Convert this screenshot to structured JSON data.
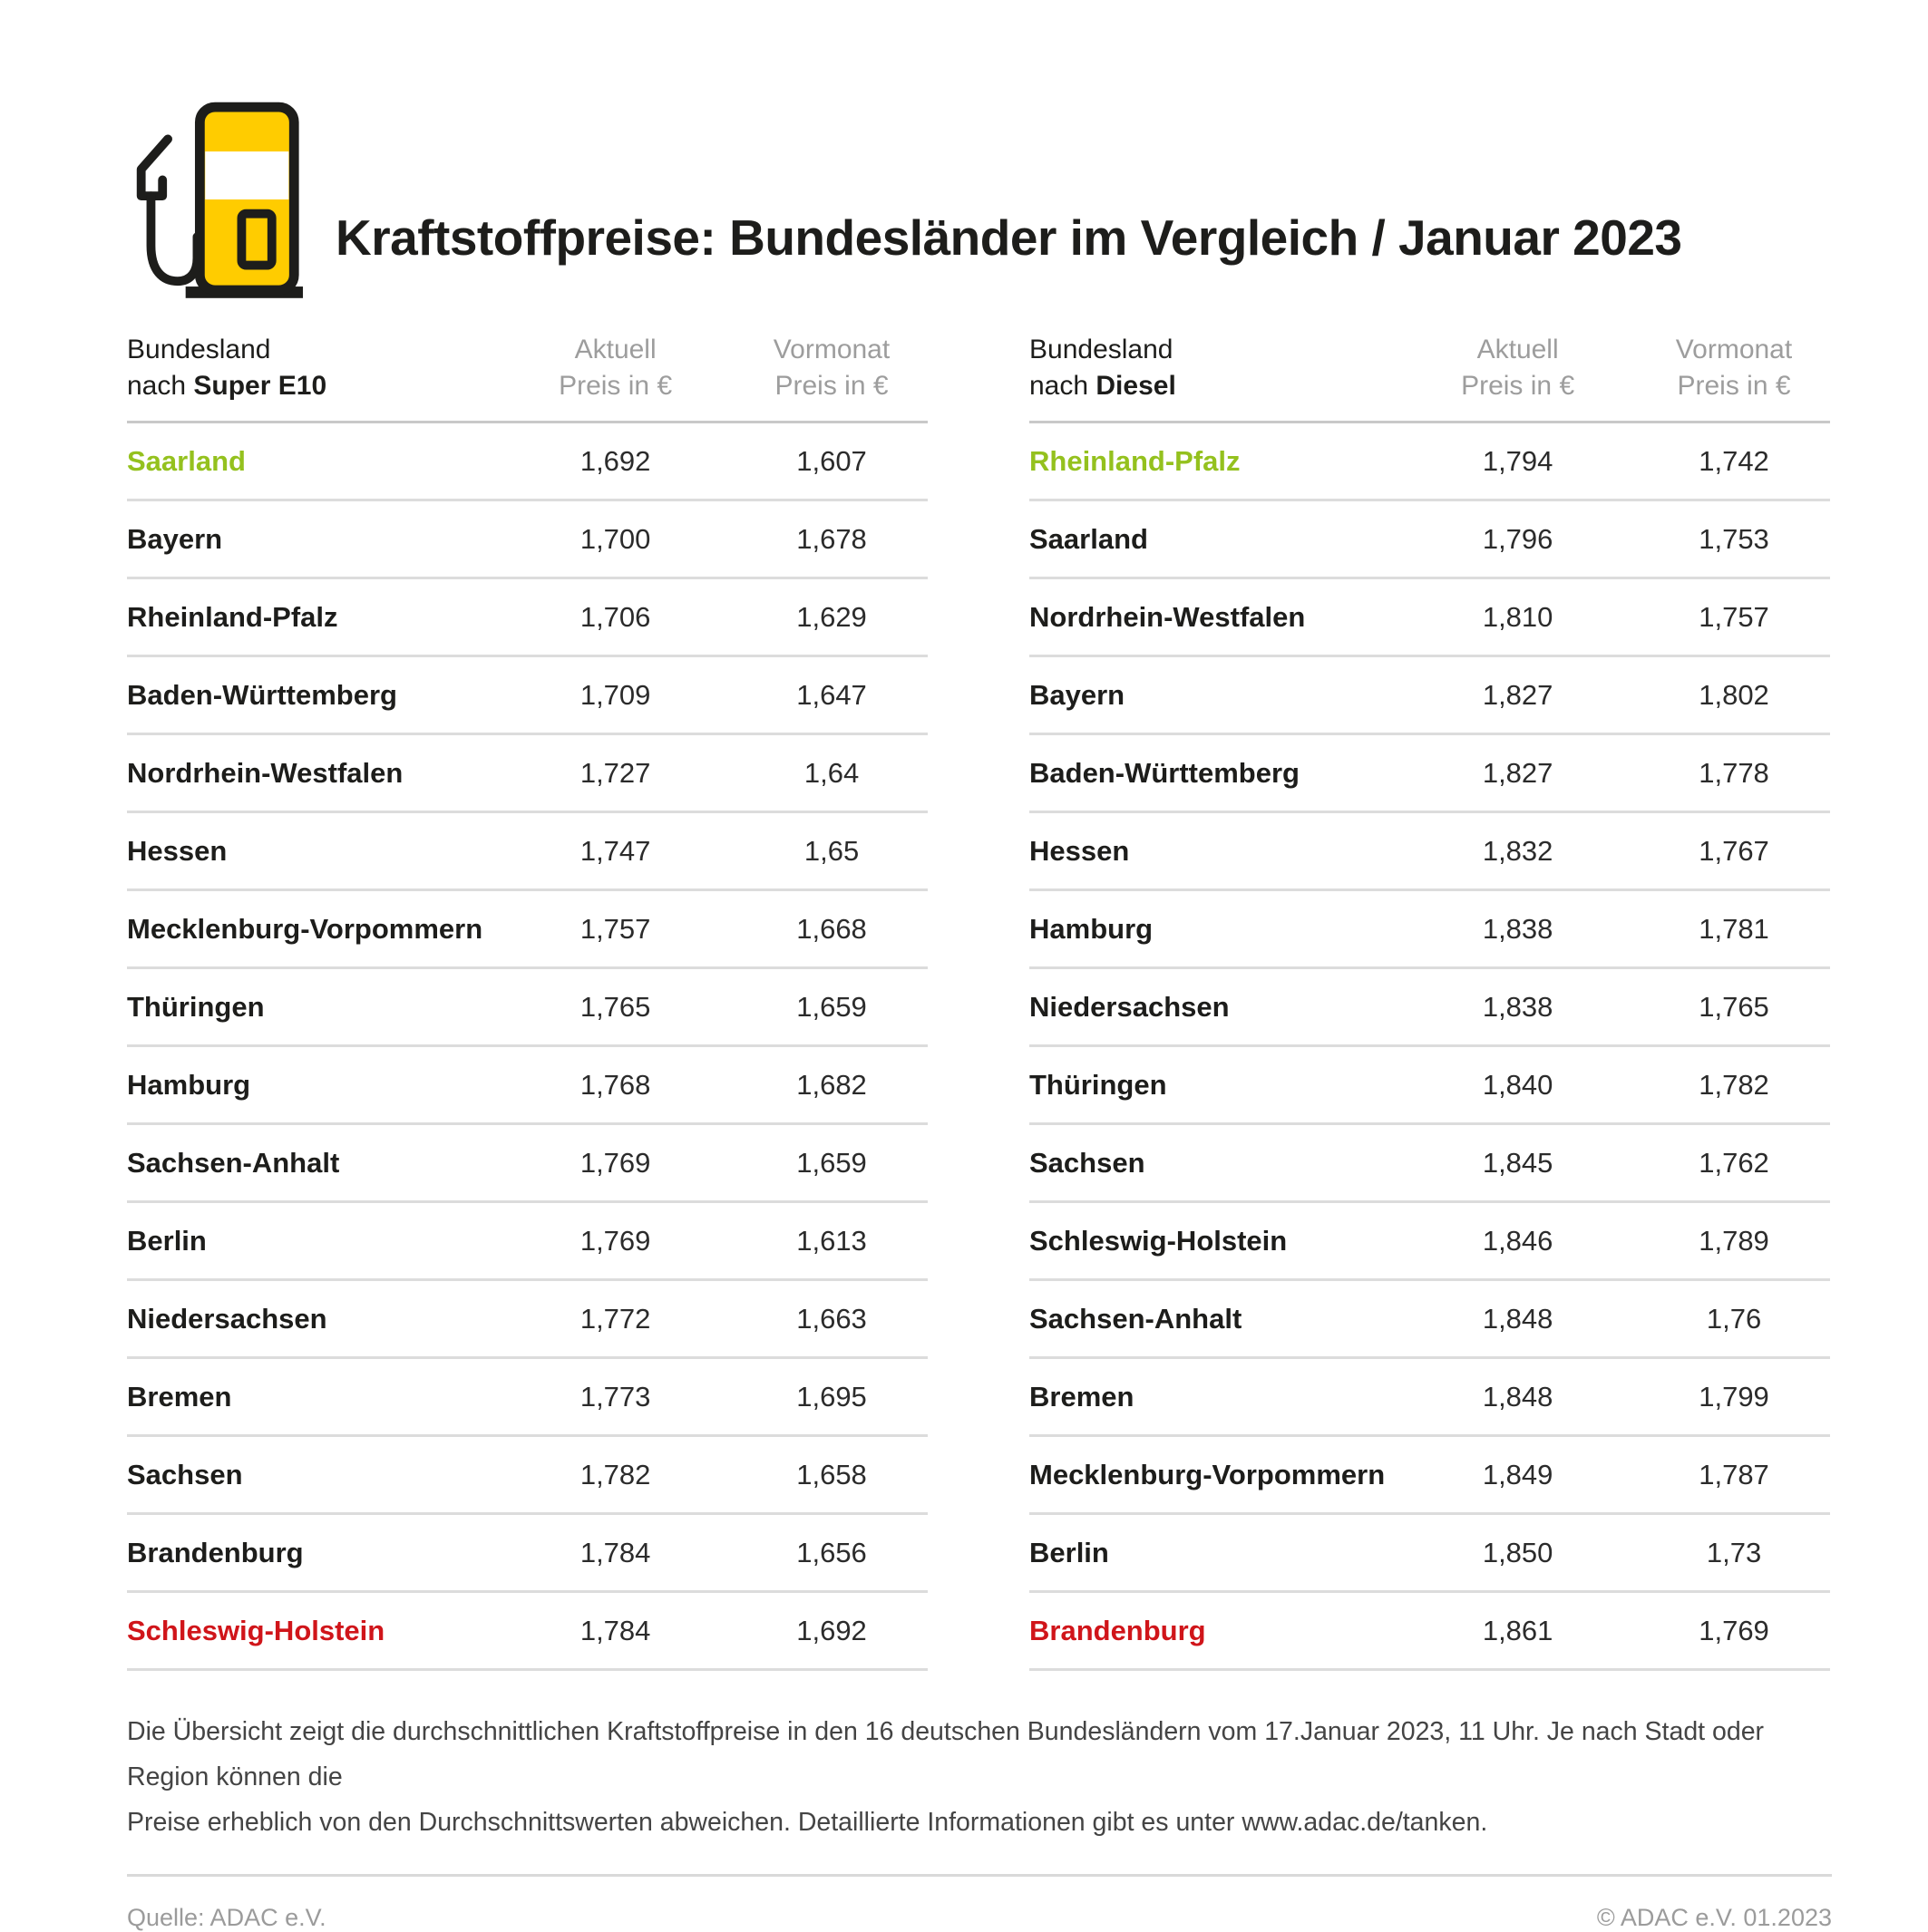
{
  "header": {
    "title": "Kraftstoffpreise: Bundesländer im Vergleich / Januar 2023",
    "icon": "fuel-pump-icon"
  },
  "colors": {
    "accent_green": "#94c11e",
    "accent_red": "#d0151a",
    "pump_yellow": "#ffcc00",
    "line_gray": "#dcdcdc"
  },
  "tables": [
    {
      "head": {
        "land_line1": "Bundesland",
        "land_prefix": "nach ",
        "land_fuel": "Super E10",
        "aktuell_line1": "Aktuell",
        "aktuell_line2": "Preis in €",
        "vormonat_line1": "Vormonat",
        "vormonat_line2": "Preis in €"
      },
      "rows": [
        {
          "land": "Saarland",
          "aktuell": "1,692",
          "vormonat": "1,607",
          "highlight": "green"
        },
        {
          "land": "Bayern",
          "aktuell": "1,700",
          "vormonat": "1,678",
          "highlight": ""
        },
        {
          "land": "Rheinland-Pfalz",
          "aktuell": "1,706",
          "vormonat": "1,629",
          "highlight": ""
        },
        {
          "land": "Baden-Württemberg",
          "aktuell": "1,709",
          "vormonat": "1,647",
          "highlight": ""
        },
        {
          "land": "Nordrhein-Westfalen",
          "aktuell": "1,727",
          "vormonat": "1,64",
          "highlight": ""
        },
        {
          "land": "Hessen",
          "aktuell": "1,747",
          "vormonat": "1,65",
          "highlight": ""
        },
        {
          "land": "Mecklenburg-Vorpommern",
          "aktuell": "1,757",
          "vormonat": "1,668",
          "highlight": ""
        },
        {
          "land": "Thüringen",
          "aktuell": "1,765",
          "vormonat": "1,659",
          "highlight": ""
        },
        {
          "land": "Hamburg",
          "aktuell": "1,768",
          "vormonat": "1,682",
          "highlight": ""
        },
        {
          "land": "Sachsen-Anhalt",
          "aktuell": "1,769",
          "vormonat": "1,659",
          "highlight": ""
        },
        {
          "land": "Berlin",
          "aktuell": "1,769",
          "vormonat": "1,613",
          "highlight": ""
        },
        {
          "land": "Niedersachsen",
          "aktuell": "1,772",
          "vormonat": "1,663",
          "highlight": ""
        },
        {
          "land": "Bremen",
          "aktuell": "1,773",
          "vormonat": "1,695",
          "highlight": ""
        },
        {
          "land": "Sachsen",
          "aktuell": "1,782",
          "vormonat": "1,658",
          "highlight": ""
        },
        {
          "land": "Brandenburg",
          "aktuell": "1,784",
          "vormonat": "1,656",
          "highlight": ""
        },
        {
          "land": "Schleswig-Holstein",
          "aktuell": "1,784",
          "vormonat": "1,692",
          "highlight": "red"
        }
      ]
    },
    {
      "head": {
        "land_line1": "Bundesland",
        "land_prefix": "nach ",
        "land_fuel": "Diesel",
        "aktuell_line1": "Aktuell",
        "aktuell_line2": "Preis in €",
        "vormonat_line1": "Vormonat",
        "vormonat_line2": "Preis in €"
      },
      "rows": [
        {
          "land": "Rheinland-Pfalz",
          "aktuell": "1,794",
          "vormonat": "1,742",
          "highlight": "green"
        },
        {
          "land": "Saarland",
          "aktuell": "1,796",
          "vormonat": "1,753",
          "highlight": ""
        },
        {
          "land": "Nordrhein-Westfalen",
          "aktuell": "1,810",
          "vormonat": "1,757",
          "highlight": ""
        },
        {
          "land": "Bayern",
          "aktuell": "1,827",
          "vormonat": "1,802",
          "highlight": ""
        },
        {
          "land": "Baden-Württemberg",
          "aktuell": "1,827",
          "vormonat": "1,778",
          "highlight": ""
        },
        {
          "land": "Hessen",
          "aktuell": "1,832",
          "vormonat": "1,767",
          "highlight": ""
        },
        {
          "land": "Hamburg",
          "aktuell": "1,838",
          "vormonat": "1,781",
          "highlight": ""
        },
        {
          "land": "Niedersachsen",
          "aktuell": "1,838",
          "vormonat": "1,765",
          "highlight": ""
        },
        {
          "land": "Thüringen",
          "aktuell": "1,840",
          "vormonat": "1,782",
          "highlight": ""
        },
        {
          "land": "Sachsen",
          "aktuell": "1,845",
          "vormonat": "1,762",
          "highlight": ""
        },
        {
          "land": "Schleswig-Holstein",
          "aktuell": "1,846",
          "vormonat": "1,789",
          "highlight": ""
        },
        {
          "land": "Sachsen-Anhalt",
          "aktuell": "1,848",
          "vormonat": "1,76",
          "highlight": ""
        },
        {
          "land": "Bremen",
          "aktuell": "1,848",
          "vormonat": "1,799",
          "highlight": ""
        },
        {
          "land": "Mecklenburg-Vorpommern",
          "aktuell": "1,849",
          "vormonat": "1,787",
          "highlight": ""
        },
        {
          "land": "Berlin",
          "aktuell": "1,850",
          "vormonat": "1,73",
          "highlight": ""
        },
        {
          "land": "Brandenburg",
          "aktuell": "1,861",
          "vormonat": "1,769",
          "highlight": "red"
        }
      ]
    }
  ],
  "footnote": {
    "line1": "Die Übersicht zeigt die durchschnittlichen Kraftstoffpreise in den 16 deutschen Bundesländern vom 17.Januar 2023, 11 Uhr. Je nach Stadt oder Region können die",
    "line2": "Preise erheblich von den Durchschnittswerten abweichen. Detaillierte Informationen gibt es unter www.adac.de/tanken."
  },
  "footer": {
    "source": "Quelle: ADAC e.V.",
    "copyright": "© ADAC e.V. 01.2023"
  },
  "chart_data": [
    {
      "type": "table",
      "title": "Bundesland nach Super E10",
      "columns": [
        "Bundesland",
        "Aktuell Preis in €",
        "Vormonat Preis in €"
      ],
      "rows": [
        [
          "Saarland",
          1.692,
          1.607
        ],
        [
          "Bayern",
          1.7,
          1.678
        ],
        [
          "Rheinland-Pfalz",
          1.706,
          1.629
        ],
        [
          "Baden-Württemberg",
          1.709,
          1.647
        ],
        [
          "Nordrhein-Westfalen",
          1.727,
          1.64
        ],
        [
          "Hessen",
          1.747,
          1.65
        ],
        [
          "Mecklenburg-Vorpommern",
          1.757,
          1.668
        ],
        [
          "Thüringen",
          1.765,
          1.659
        ],
        [
          "Hamburg",
          1.768,
          1.682
        ],
        [
          "Sachsen-Anhalt",
          1.769,
          1.659
        ],
        [
          "Berlin",
          1.769,
          1.613
        ],
        [
          "Niedersachsen",
          1.772,
          1.663
        ],
        [
          "Bremen",
          1.773,
          1.695
        ],
        [
          "Sachsen",
          1.782,
          1.658
        ],
        [
          "Brandenburg",
          1.784,
          1.656
        ],
        [
          "Schleswig-Holstein",
          1.784,
          1.692
        ]
      ],
      "annotations": {
        "cheapest_green": "Saarland",
        "most_expensive_red": "Schleswig-Holstein"
      }
    },
    {
      "type": "table",
      "title": "Bundesland nach Diesel",
      "columns": [
        "Bundesland",
        "Aktuell Preis in €",
        "Vormonat Preis in €"
      ],
      "rows": [
        [
          "Rheinland-Pfalz",
          1.794,
          1.742
        ],
        [
          "Saarland",
          1.796,
          1.753
        ],
        [
          "Nordrhein-Westfalen",
          1.81,
          1.757
        ],
        [
          "Bayern",
          1.827,
          1.802
        ],
        [
          "Baden-Württemberg",
          1.827,
          1.778
        ],
        [
          "Hessen",
          1.832,
          1.767
        ],
        [
          "Hamburg",
          1.838,
          1.781
        ],
        [
          "Niedersachsen",
          1.838,
          1.765
        ],
        [
          "Thüringen",
          1.84,
          1.782
        ],
        [
          "Sachsen",
          1.845,
          1.762
        ],
        [
          "Schleswig-Holstein",
          1.846,
          1.789
        ],
        [
          "Sachsen-Anhalt",
          1.848,
          1.76
        ],
        [
          "Bremen",
          1.848,
          1.799
        ],
        [
          "Mecklenburg-Vorpommern",
          1.849,
          1.787
        ],
        [
          "Berlin",
          1.85,
          1.73
        ],
        [
          "Brandenburg",
          1.861,
          1.769
        ]
      ],
      "annotations": {
        "cheapest_green": "Rheinland-Pfalz",
        "most_expensive_red": "Brandenburg"
      }
    }
  ]
}
